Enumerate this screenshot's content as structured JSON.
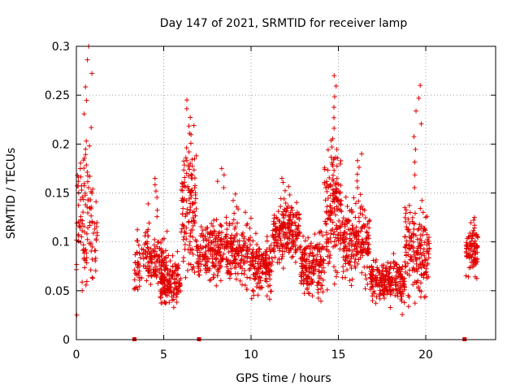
{
  "chart_data": {
    "type": "scatter",
    "title": "Day 147 of 2021, SRMTID for receiver lamp",
    "xlabel": "GPS time / hours",
    "ylabel": "SRMTID / TECUs",
    "xlim": [
      0,
      24
    ],
    "ylim": [
      0,
      0.3
    ],
    "xticks": [
      0,
      5,
      10,
      15,
      20
    ],
    "yticks": [
      0,
      0.05,
      0.1,
      0.15,
      0.2,
      0.25,
      0.3
    ],
    "xtick_labels": [
      "0",
      "5",
      "10",
      "15",
      "20"
    ],
    "ytick_labels": [
      "0",
      "0.05",
      "0.1",
      "0.15",
      "0.2",
      "0.25",
      "0.3"
    ],
    "grid": true,
    "marker": "+",
    "color": "#e00000",
    "series": [
      {
        "name": "SRMTID",
        "clusters": [
          {
            "x_range": [
              0.0,
              1.2
            ],
            "center": 0.12,
            "spread": 0.06,
            "n": 110,
            "peak": 0.3
          },
          {
            "x_range": [
              3.3,
              5.2
            ],
            "center": 0.08,
            "spread": 0.025,
            "n": 160,
            "peak": 0.165
          },
          {
            "x_range": [
              4.8,
              6.0
            ],
            "center": 0.06,
            "spread": 0.02,
            "n": 140
          },
          {
            "x_range": [
              6.0,
              6.9
            ],
            "center": 0.13,
            "spread": 0.06,
            "n": 120,
            "peak": 0.245
          },
          {
            "x_range": [
              6.9,
              10.0
            ],
            "center": 0.09,
            "spread": 0.03,
            "n": 330,
            "peak": 0.175
          },
          {
            "x_range": [
              10.0,
              11.2
            ],
            "center": 0.075,
            "spread": 0.025,
            "n": 140
          },
          {
            "x_range": [
              11.2,
              12.8
            ],
            "center": 0.11,
            "spread": 0.025,
            "n": 200,
            "peak": 0.165
          },
          {
            "x_range": [
              12.8,
              14.2
            ],
            "center": 0.075,
            "spread": 0.025,
            "n": 180
          },
          {
            "x_range": [
              14.2,
              15.2
            ],
            "center": 0.13,
            "spread": 0.06,
            "n": 150,
            "peak": 0.27
          },
          {
            "x_range": [
              15.2,
              16.8
            ],
            "center": 0.1,
            "spread": 0.035,
            "n": 190,
            "peak": 0.19
          },
          {
            "x_range": [
              16.8,
              18.8
            ],
            "center": 0.06,
            "spread": 0.02,
            "n": 230
          },
          {
            "x_range": [
              18.8,
              20.2
            ],
            "center": 0.09,
            "spread": 0.04,
            "n": 170,
            "peak": 0.26
          },
          {
            "x_range": [
              22.3,
              23.0
            ],
            "center": 0.09,
            "spread": 0.02,
            "n": 80,
            "peak": 0.125
          }
        ],
        "bottom_markers_x": [
          3.3,
          7.0,
          22.2
        ]
      }
    ]
  }
}
